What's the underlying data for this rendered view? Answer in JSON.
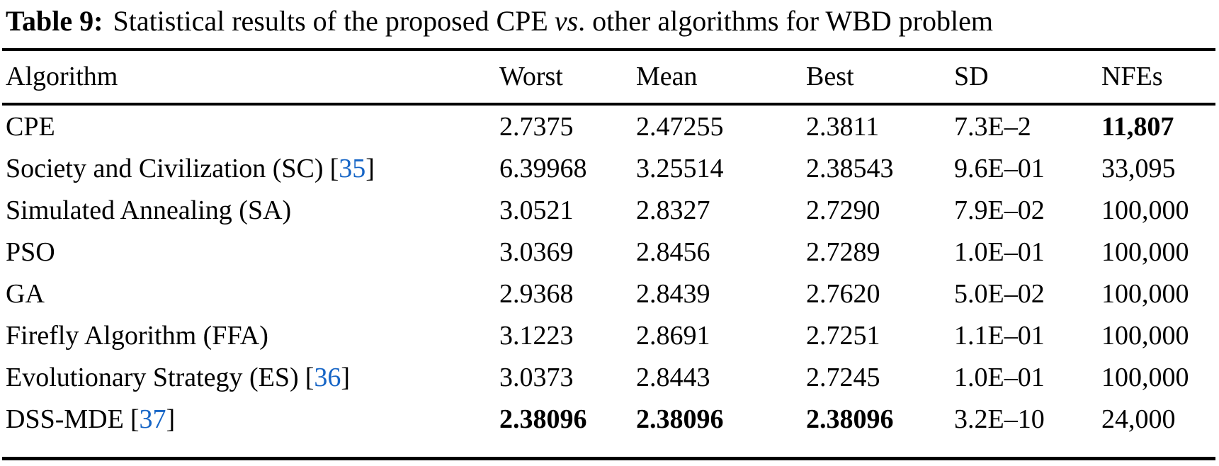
{
  "colors": {
    "background": "#FFFFFF",
    "text": "#000000",
    "rule": "#000000",
    "citation_blue": "#1665C6"
  },
  "title": {
    "label": "Table 9:",
    "before_vs": "Statistical results of the proposed CPE",
    "vs": "vs",
    "after_vs": ". other algorithms for WBD problem"
  },
  "table": {
    "columns": [
      "Algorithm",
      "Worst",
      "Mean",
      "Best",
      "SD",
      "NFEs"
    ],
    "citation_open": "[",
    "citation_close": "]",
    "rows": [
      {
        "algorithm": "CPE",
        "citation": null,
        "worst": "2.7375",
        "mean": "2.47255",
        "best": "2.3811",
        "sd": "7.3E–2",
        "nfes": "11,807",
        "bold_cells": [
          "nfes"
        ]
      },
      {
        "algorithm": "Society and Civilization (SC)",
        "citation": "35",
        "worst": "6.39968",
        "mean": "3.25514",
        "best": "2.38543",
        "sd": "9.6E–01",
        "nfes": "33,095",
        "bold_cells": []
      },
      {
        "algorithm": "Simulated Annealing (SA)",
        "citation": null,
        "worst": "3.0521",
        "mean": "2.8327",
        "best": "2.7290",
        "sd": "7.9E–02",
        "nfes": "100,000",
        "bold_cells": []
      },
      {
        "algorithm": "PSO",
        "citation": null,
        "worst": "3.0369",
        "mean": "2.8456",
        "best": "2.7289",
        "sd": "1.0E–01",
        "nfes": "100,000",
        "bold_cells": []
      },
      {
        "algorithm": "GA",
        "citation": null,
        "worst": "2.9368",
        "mean": "2.8439",
        "best": "2.7620",
        "sd": "5.0E–02",
        "nfes": "100,000",
        "bold_cells": []
      },
      {
        "algorithm": "Firefly Algorithm (FFA)",
        "citation": null,
        "worst": "3.1223",
        "mean": "2.8691",
        "best": "2.7251",
        "sd": "1.1E–01",
        "nfes": "100,000",
        "bold_cells": []
      },
      {
        "algorithm": "Evolutionary Strategy (ES)",
        "citation": "36",
        "worst": "3.0373",
        "mean": "2.8443",
        "best": "2.7245",
        "sd": "1.0E–01",
        "nfes": "100,000",
        "bold_cells": []
      },
      {
        "algorithm": "DSS-MDE",
        "citation": "37",
        "worst": "2.38096",
        "mean": "2.38096",
        "best": "2.38096",
        "sd": "3.2E–10",
        "nfes": "24,000",
        "bold_cells": [
          "worst",
          "mean",
          "best"
        ]
      }
    ]
  }
}
